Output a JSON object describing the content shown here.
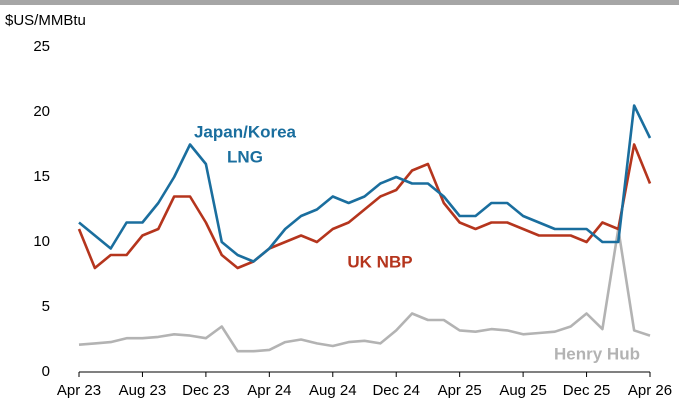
{
  "chart_data": {
    "type": "line",
    "y_axis_label": "$US/MMBtu",
    "categories": [
      "Apr 23",
      null,
      null,
      null,
      "Aug 23",
      null,
      null,
      null,
      "Dec 23",
      null,
      null,
      null,
      "Apr 24",
      null,
      null,
      null,
      "Aug 24",
      null,
      null,
      null,
      "Dec 24",
      null,
      null,
      null,
      "Apr 25",
      null,
      null,
      null,
      "Aug 25",
      null,
      null,
      null,
      "Dec 25",
      null,
      null,
      null,
      "Apr 26"
    ],
    "series": [
      {
        "label": [
          "Japan/Korea",
          "LNG"
        ],
        "color": "#1a6e9e",
        "values": [
          11.5,
          10.5,
          9.5,
          11.5,
          11.5,
          13,
          15,
          17.5,
          16,
          10,
          9,
          8.5,
          9.5,
          11,
          12,
          12.5,
          13.5,
          13,
          13.5,
          14.5,
          15,
          14.5,
          14.5,
          13.5,
          12,
          12,
          13,
          13,
          12,
          11.5,
          11,
          11,
          11,
          10,
          10,
          20.5,
          18
        ]
      },
      {
        "label": [
          "UK NBP"
        ],
        "color": "#b5351d",
        "values": [
          11,
          8,
          9,
          9,
          10.5,
          11,
          13.5,
          13.5,
          11.5,
          9,
          8,
          8.5,
          9.5,
          10,
          10.5,
          10,
          11,
          11.5,
          12.5,
          13.5,
          14,
          15.5,
          16,
          13,
          11.5,
          11,
          11.5,
          11.5,
          11,
          10.5,
          10.5,
          10.5,
          10,
          11.5,
          11,
          17.5,
          14.5
        ]
      },
      {
        "label": [
          "Henry Hub"
        ],
        "color": "#b3b3b3",
        "values": [
          2.1,
          2.2,
          2.3,
          2.6,
          2.6,
          2.7,
          2.9,
          2.8,
          2.6,
          3.5,
          1.6,
          1.6,
          1.7,
          2.3,
          2.5,
          2.2,
          2.0,
          2.3,
          2.4,
          2.2,
          3.2,
          4.5,
          4,
          4,
          3.2,
          3.1,
          3.3,
          3.2,
          2.9,
          3.0,
          3.1,
          3.5,
          4.5,
          3.3,
          11,
          3.2,
          2.8
        ]
      }
    ],
    "ylim": [
      0,
      25
    ],
    "yticks": [
      0,
      5,
      10,
      15,
      20,
      25
    ]
  }
}
